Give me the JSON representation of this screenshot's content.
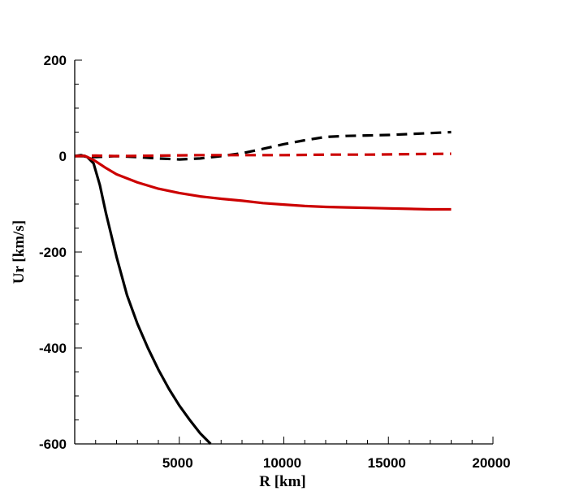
{
  "chart_data": {
    "type": "line",
    "xlabel": "R [km]",
    "ylabel": "Ur [km/s]",
    "xlim": [
      0,
      20000
    ],
    "ylim": [
      -600,
      200
    ],
    "x_ticks": [
      5000,
      10000,
      15000,
      20000
    ],
    "x_tick_labels": [
      "5000",
      "10000",
      "15000",
      "20000"
    ],
    "y_ticks": [
      200,
      0,
      -200,
      -400,
      -600
    ],
    "y_tick_labels": [
      "200",
      "0",
      "-200",
      "-400",
      "-600"
    ],
    "grid": false,
    "legend": "none",
    "series": [
      {
        "color": "#000000",
        "style": "solid",
        "points": [
          [
            0,
            0
          ],
          [
            300,
            2
          ],
          [
            600,
            -2
          ],
          [
            900,
            -15
          ],
          [
            1200,
            -60
          ],
          [
            1500,
            -120
          ],
          [
            2000,
            -210
          ],
          [
            2500,
            -290
          ],
          [
            3000,
            -350
          ],
          [
            3500,
            -400
          ],
          [
            4000,
            -445
          ],
          [
            4500,
            -485
          ],
          [
            5000,
            -520
          ],
          [
            5500,
            -550
          ],
          [
            6000,
            -578
          ],
          [
            6500,
            -600
          ]
        ]
      },
      {
        "color": "#cc0000",
        "style": "solid",
        "points": [
          [
            0,
            0
          ],
          [
            500,
            0
          ],
          [
            900,
            -8
          ],
          [
            1500,
            -25
          ],
          [
            2000,
            -38
          ],
          [
            3000,
            -55
          ],
          [
            4000,
            -68
          ],
          [
            5000,
            -77
          ],
          [
            6000,
            -84
          ],
          [
            7000,
            -89
          ],
          [
            8000,
            -93
          ],
          [
            9000,
            -98
          ],
          [
            10000,
            -101
          ],
          [
            11000,
            -104
          ],
          [
            12000,
            -106
          ],
          [
            13000,
            -107
          ],
          [
            14000,
            -108
          ],
          [
            15000,
            -109
          ],
          [
            16000,
            -110
          ],
          [
            17000,
            -111
          ],
          [
            18000,
            -111
          ]
        ]
      },
      {
        "color": "#000000",
        "style": "dashed",
        "points": [
          [
            0,
            0
          ],
          [
            500,
            0
          ],
          [
            1000,
            -2
          ],
          [
            2000,
            0
          ],
          [
            3000,
            -2
          ],
          [
            4000,
            -5
          ],
          [
            5000,
            -7
          ],
          [
            6000,
            -5
          ],
          [
            7000,
            0
          ],
          [
            8000,
            6
          ],
          [
            9000,
            15
          ],
          [
            10000,
            25
          ],
          [
            11000,
            33
          ],
          [
            12000,
            40
          ],
          [
            13000,
            42
          ],
          [
            14000,
            43
          ],
          [
            15000,
            44
          ],
          [
            16000,
            46
          ],
          [
            17000,
            48
          ],
          [
            18000,
            50
          ]
        ]
      },
      {
        "color": "#cc0000",
        "style": "dashed",
        "points": [
          [
            0,
            0
          ],
          [
            1000,
            1
          ],
          [
            2000,
            0
          ],
          [
            4000,
            1
          ],
          [
            6000,
            2
          ],
          [
            8000,
            2
          ],
          [
            10000,
            2
          ],
          [
            12000,
            3
          ],
          [
            14000,
            3
          ],
          [
            16000,
            4
          ],
          [
            18000,
            5
          ]
        ]
      }
    ]
  }
}
